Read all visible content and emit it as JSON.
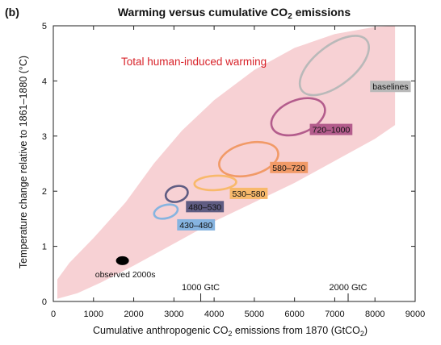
{
  "panel_label": "(b)",
  "colors": {
    "plume": "#f6c9cc",
    "plume_text": "#d8232a",
    "baselines": "#b9b9b9",
    "r720_1000": "#b35c8c",
    "r580_720": "#f19a67",
    "r530_580": "#f8b96b",
    "r480_530": "#5f5c82",
    "r430_480": "#86b4e0",
    "observed": "#000000"
  },
  "chart_data": {
    "type": "scatter",
    "title_parts": {
      "pre": "Warming versus cumulative CO",
      "sub": "2",
      "post": " emissions"
    },
    "xlabel_parts": {
      "pre": "Cumulative anthropogenic CO",
      "sub": "2",
      "post": " emissions from 1870  (GtCO",
      "sub2": "2",
      "end": ")"
    },
    "ylabel": "Temperature change relative to 1861–1880 (°C)",
    "xlim": [
      0,
      9000
    ],
    "ylim": [
      0,
      5
    ],
    "xticks": [
      "0",
      "1000",
      "2000",
      "3000",
      "4000",
      "5000",
      "6000",
      "7000",
      "8000",
      "9000"
    ],
    "yticks": [
      "0",
      "1",
      "2",
      "3",
      "4",
      "5"
    ],
    "top_axis_labels": [
      {
        "x": 3667,
        "text": "1000 GtC"
      },
      {
        "x": 7333,
        "text": "2000 GtC"
      }
    ],
    "plume": {
      "label": "Total human-induced warming",
      "upper": [
        [
          100,
          0.4
        ],
        [
          400,
          0.7
        ],
        [
          1000,
          1.15
        ],
        [
          1800,
          1.8
        ],
        [
          2500,
          2.5
        ],
        [
          3200,
          3.1
        ],
        [
          4000,
          3.65
        ],
        [
          5000,
          4.2
        ],
        [
          6000,
          4.6
        ],
        [
          7000,
          4.85
        ],
        [
          8000,
          4.98
        ],
        [
          8500,
          5.0
        ]
      ],
      "lower": [
        [
          8500,
          3.2
        ],
        [
          8000,
          2.95
        ],
        [
          7000,
          2.55
        ],
        [
          6000,
          2.15
        ],
        [
          5000,
          1.8
        ],
        [
          4000,
          1.45
        ],
        [
          3000,
          1.05
        ],
        [
          2000,
          0.65
        ],
        [
          1200,
          0.35
        ],
        [
          600,
          0.15
        ],
        [
          100,
          0.05
        ]
      ]
    },
    "series": [
      {
        "name": "baselines",
        "color_key": "baselines",
        "cx": 6990,
        "cy": 4.28,
        "rx": 1020,
        "ry": 0.36,
        "rot": -38,
        "label_x": 7940,
        "label_y": 3.9
      },
      {
        "name": "720–1000",
        "color_key": "r720_1000",
        "cx": 6090,
        "cy": 3.35,
        "rx": 700,
        "ry": 0.3,
        "rot": -22,
        "label_x": 6440,
        "label_y": 3.12
      },
      {
        "name": "580–720",
        "color_key": "r580_720",
        "cx": 4860,
        "cy": 2.58,
        "rx": 750,
        "ry": 0.29,
        "rot": -14,
        "label_x": 5450,
        "label_y": 2.43
      },
      {
        "name": "530–580",
        "color_key": "r530_580",
        "cx": 4030,
        "cy": 2.15,
        "rx": 520,
        "ry": 0.13,
        "rot": -3,
        "label_x": 4450,
        "label_y": 1.96
      },
      {
        "name": "480–530",
        "color_key": "r480_530",
        "cx": 3070,
        "cy": 1.95,
        "rx": 280,
        "ry": 0.14,
        "rot": -16,
        "label_x": 3360,
        "label_y": 1.72
      },
      {
        "name": "430–480",
        "color_key": "r430_480",
        "cx": 2800,
        "cy": 1.63,
        "rx": 300,
        "ry": 0.12,
        "rot": -15,
        "label_x": 3140,
        "label_y": 1.39
      }
    ],
    "observed": {
      "name": "observed 2000s",
      "x": 1720,
      "y": 0.74,
      "label_x": 1790,
      "label_y": 0.5
    }
  }
}
